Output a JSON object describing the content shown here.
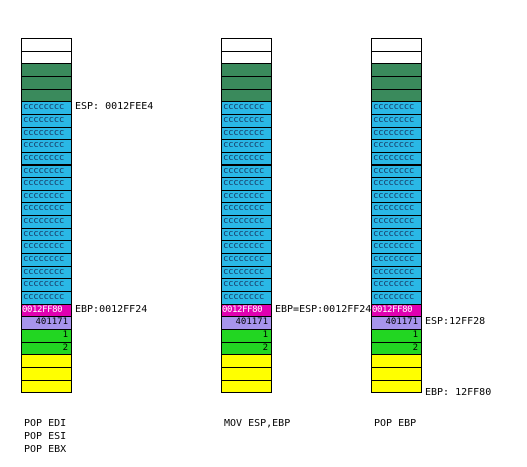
{
  "stacks": [
    {
      "cells": [
        {
          "text": "",
          "color": "white"
        },
        {
          "text": "",
          "color": "white"
        },
        {
          "text": "",
          "color": "dgreen"
        },
        {
          "text": "",
          "color": "dgreen"
        },
        {
          "text": "",
          "color": "dgreen"
        },
        {
          "text": "cccccccc",
          "color": "cyan"
        },
        {
          "text": "cccccccc",
          "color": "cyan"
        },
        {
          "text": "cccccccc",
          "color": "cyan"
        },
        {
          "text": "cccccccc",
          "color": "cyan"
        },
        {
          "text": "cccccccc",
          "color": "cyan"
        },
        {
          "text": "cccccccc",
          "color": "cyan"
        },
        {
          "text": "cccccccc",
          "color": "cyan"
        },
        {
          "text": "cccccccc",
          "color": "cyan"
        },
        {
          "text": "cccccccc",
          "color": "cyan"
        },
        {
          "text": "cccccccc",
          "color": "cyan"
        },
        {
          "text": "cccccccc",
          "color": "cyan"
        },
        {
          "text": "cccccccc",
          "color": "cyan"
        },
        {
          "text": "cccccccc",
          "color": "cyan"
        },
        {
          "text": "cccccccc",
          "color": "cyan"
        },
        {
          "text": "cccccccc",
          "color": "cyan"
        },
        {
          "text": "cccccccc",
          "color": "cyan"
        },
        {
          "text": "0012FF80",
          "color": "mag"
        },
        {
          "text": "401171",
          "color": "lav"
        },
        {
          "text": "1",
          "color": "green"
        },
        {
          "text": "2",
          "color": "green"
        },
        {
          "text": "",
          "color": "yellow"
        },
        {
          "text": "",
          "color": "yellow"
        },
        {
          "text": "",
          "color": "yellow"
        }
      ],
      "labels": [
        {
          "text": "ESP: 0012FEE4",
          "row": 5
        },
        {
          "text": "EBP:0012FF24",
          "row": 21
        }
      ],
      "caption": [
        "POP EDI",
        "POP ESI",
        "POP EBX"
      ]
    },
    {
      "cells": [
        {
          "text": "",
          "color": "white"
        },
        {
          "text": "",
          "color": "white"
        },
        {
          "text": "",
          "color": "dgreen"
        },
        {
          "text": "",
          "color": "dgreen"
        },
        {
          "text": "",
          "color": "dgreen"
        },
        {
          "text": "cccccccc",
          "color": "cyan"
        },
        {
          "text": "cccccccc",
          "color": "cyan"
        },
        {
          "text": "cccccccc",
          "color": "cyan"
        },
        {
          "text": "cccccccc",
          "color": "cyan"
        },
        {
          "text": "cccccccc",
          "color": "cyan"
        },
        {
          "text": "cccccccc",
          "color": "cyan"
        },
        {
          "text": "cccccccc",
          "color": "cyan"
        },
        {
          "text": "cccccccc",
          "color": "cyan"
        },
        {
          "text": "cccccccc",
          "color": "cyan"
        },
        {
          "text": "cccccccc",
          "color": "cyan"
        },
        {
          "text": "cccccccc",
          "color": "cyan"
        },
        {
          "text": "cccccccc",
          "color": "cyan"
        },
        {
          "text": "cccccccc",
          "color": "cyan"
        },
        {
          "text": "cccccccc",
          "color": "cyan"
        },
        {
          "text": "cccccccc",
          "color": "cyan"
        },
        {
          "text": "cccccccc",
          "color": "cyan"
        },
        {
          "text": "0012FF80",
          "color": "mag"
        },
        {
          "text": "401171",
          "color": "lav"
        },
        {
          "text": "1",
          "color": "green"
        },
        {
          "text": "2",
          "color": "green"
        },
        {
          "text": "",
          "color": "yellow"
        },
        {
          "text": "",
          "color": "yellow"
        },
        {
          "text": "",
          "color": "yellow"
        }
      ],
      "labels": [
        {
          "text": "EBP=ESP:0012FF24",
          "row": 21
        }
      ],
      "caption": [
        "MOV ESP,EBP"
      ]
    },
    {
      "cells": [
        {
          "text": "",
          "color": "white"
        },
        {
          "text": "",
          "color": "white"
        },
        {
          "text": "",
          "color": "dgreen"
        },
        {
          "text": "",
          "color": "dgreen"
        },
        {
          "text": "",
          "color": "dgreen"
        },
        {
          "text": "cccccccc",
          "color": "cyan"
        },
        {
          "text": "cccccccc",
          "color": "cyan"
        },
        {
          "text": "cccccccc",
          "color": "cyan"
        },
        {
          "text": "cccccccc",
          "color": "cyan"
        },
        {
          "text": "cccccccc",
          "color": "cyan"
        },
        {
          "text": "cccccccc",
          "color": "cyan"
        },
        {
          "text": "cccccccc",
          "color": "cyan"
        },
        {
          "text": "cccccccc",
          "color": "cyan"
        },
        {
          "text": "cccccccc",
          "color": "cyan"
        },
        {
          "text": "cccccccc",
          "color": "cyan"
        },
        {
          "text": "cccccccc",
          "color": "cyan"
        },
        {
          "text": "cccccccc",
          "color": "cyan"
        },
        {
          "text": "cccccccc",
          "color": "cyan"
        },
        {
          "text": "cccccccc",
          "color": "cyan"
        },
        {
          "text": "cccccccc",
          "color": "cyan"
        },
        {
          "text": "cccccccc",
          "color": "cyan"
        },
        {
          "text": "0012FF80",
          "color": "mag"
        },
        {
          "text": "401171",
          "color": "lav"
        },
        {
          "text": "1",
          "color": "green"
        },
        {
          "text": "2",
          "color": "green"
        },
        {
          "text": "",
          "color": "yellow"
        },
        {
          "text": "",
          "color": "yellow"
        },
        {
          "text": "",
          "color": "yellow"
        }
      ],
      "labels": [
        {
          "text": "ESP:12FF28",
          "row": 22
        },
        {
          "text": "EBP: 12FF80",
          "row": 27.6
        }
      ],
      "caption": [
        "POP EBP"
      ]
    }
  ]
}
